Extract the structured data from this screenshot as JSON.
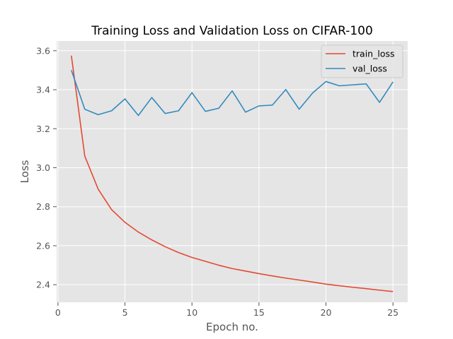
{
  "chart_data": {
    "type": "line",
    "title": "Training Loss and Validation Loss on CIFAR-100",
    "xlabel": "Epoch no.",
    "ylabel": "Loss",
    "xlim": [
      -0.1,
      26.1
    ],
    "ylim": [
      2.31,
      3.65
    ],
    "xticks": [
      0,
      5,
      10,
      15,
      20,
      25
    ],
    "yticks": [
      2.4,
      2.6,
      2.8,
      3.0,
      3.2,
      3.4,
      3.6
    ],
    "x": [
      1,
      2,
      3,
      4,
      5,
      6,
      7,
      8,
      9,
      10,
      11,
      12,
      13,
      14,
      15,
      16,
      17,
      18,
      19,
      20,
      21,
      22,
      23,
      24,
      25
    ],
    "grid": true,
    "legend_position": "top-right",
    "series": [
      {
        "name": "train_loss",
        "color": "#E24A33",
        "values": [
          3.575,
          3.06,
          2.89,
          2.785,
          2.72,
          2.67,
          2.63,
          2.595,
          2.565,
          2.54,
          2.52,
          2.5,
          2.483,
          2.47,
          2.457,
          2.445,
          2.434,
          2.424,
          2.414,
          2.403,
          2.395,
          2.387,
          2.38,
          2.372,
          2.365
        ]
      },
      {
        "name": "val_loss",
        "color": "#348ABD",
        "values": [
          3.5,
          3.3,
          3.272,
          3.292,
          3.353,
          3.268,
          3.36,
          3.278,
          3.292,
          3.385,
          3.289,
          3.305,
          3.394,
          3.285,
          3.317,
          3.321,
          3.401,
          3.3,
          3.383,
          3.442,
          3.42,
          3.425,
          3.43,
          3.335,
          3.44
        ]
      }
    ]
  }
}
